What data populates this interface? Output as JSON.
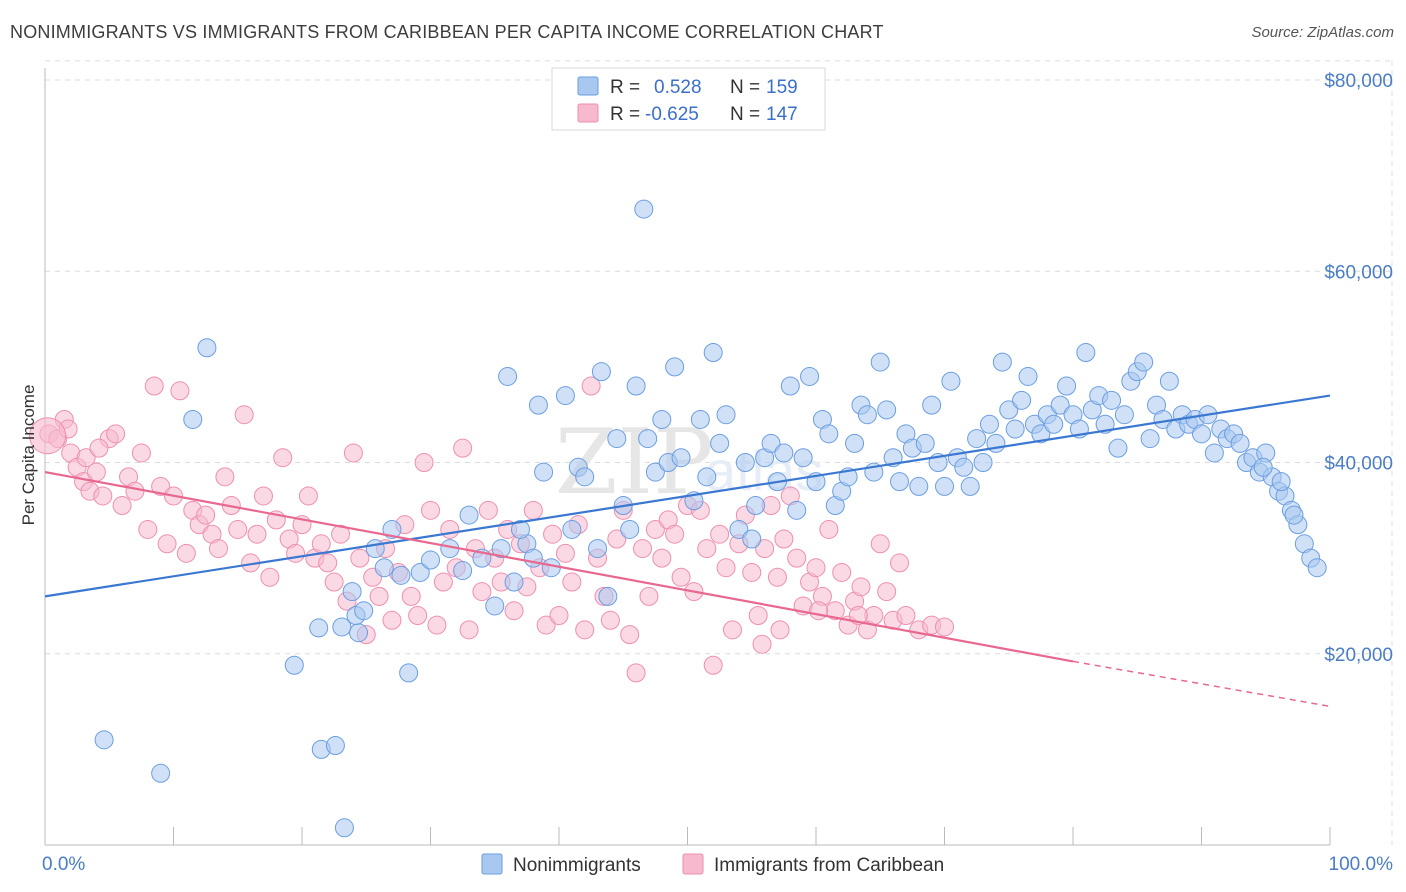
{
  "title": "NONIMMIGRANTS VS IMMIGRANTS FROM CARIBBEAN PER CAPITA INCOME CORRELATION CHART",
  "source": "Source: ZipAtlas.com",
  "watermark": {
    "zip": "ZIP",
    "atlas": "atlas"
  },
  "legend_top": {
    "r_label": "R =",
    "n_label": "N =",
    "rows": [
      {
        "r": "0.528",
        "n": "159",
        "color": "#a8c6f0",
        "stroke": "#6b9ee0"
      },
      {
        "r": "-0.625",
        "n": "147",
        "color": "#f7bcd0",
        "stroke": "#ee8fb0"
      }
    ]
  },
  "legend_bottom": [
    "Nonimmigrants",
    "Immigrants from Caribbean"
  ],
  "colors": {
    "blue": "#3b78d1",
    "pink": "#e8688f",
    "blue_fill": "#a9c8f0",
    "pink_fill": "#f6b9cd"
  },
  "chart_data": {
    "type": "scatter",
    "title": "NONIMMIGRANTS VS IMMIGRANTS FROM CARIBBEAN PER CAPITA INCOME CORRELATION CHART",
    "xlabel": "",
    "ylabel": "Per Capita Income",
    "xlim": [
      0,
      100
    ],
    "ylim": [
      0,
      82000
    ],
    "x_tick_labels": [
      "0.0%",
      "100.0%"
    ],
    "y_ticks": [
      20000,
      40000,
      60000,
      80000
    ],
    "y_tick_labels": [
      "$20,000",
      "$40,000",
      "$60,000",
      "$80,000"
    ],
    "grid": true,
    "series": [
      {
        "name": "Nonimmigrants",
        "trend": {
          "x0": 0,
          "y0": 26000,
          "x1": 100,
          "y1": 47000
        },
        "points": [
          [
            12.6,
            52000
          ],
          [
            11.5,
            44500
          ],
          [
            4.6,
            11000
          ],
          [
            9.0,
            7500
          ],
          [
            19.4,
            18800
          ],
          [
            21.3,
            22700
          ],
          [
            21.5,
            10000
          ],
          [
            22.6,
            10400
          ],
          [
            23.3,
            1800
          ],
          [
            23.1,
            22800
          ],
          [
            23.9,
            26500
          ],
          [
            24.4,
            22200
          ],
          [
            25.7,
            31000
          ],
          [
            26.4,
            29000
          ],
          [
            27.0,
            33000
          ],
          [
            27.7,
            28200
          ],
          [
            28.3,
            18000
          ],
          [
            24.2,
            24000
          ],
          [
            24.8,
            24500
          ],
          [
            29.2,
            28500
          ],
          [
            30.0,
            29800
          ],
          [
            31.5,
            31000
          ],
          [
            32.5,
            28700
          ],
          [
            33.0,
            34500
          ],
          [
            34.0,
            30000
          ],
          [
            35.0,
            25000
          ],
          [
            35.5,
            31000
          ],
          [
            36.0,
            49000
          ],
          [
            36.5,
            27500
          ],
          [
            37.5,
            31500
          ],
          [
            37.0,
            33000
          ],
          [
            38.0,
            30000
          ],
          [
            38.4,
            46000
          ],
          [
            38.8,
            39000
          ],
          [
            39.4,
            29000
          ],
          [
            40.5,
            47000
          ],
          [
            41.0,
            33000
          ],
          [
            41.5,
            39500
          ],
          [
            42.0,
            38500
          ],
          [
            43.0,
            31000
          ],
          [
            43.3,
            49500
          ],
          [
            43.8,
            26000
          ],
          [
            44.5,
            42500
          ],
          [
            45.0,
            35500
          ],
          [
            45.5,
            33000
          ],
          [
            46.0,
            48000
          ],
          [
            46.6,
            66500
          ],
          [
            46.9,
            42500
          ],
          [
            47.5,
            39000
          ],
          [
            48.0,
            44500
          ],
          [
            48.5,
            40000
          ],
          [
            49.0,
            50000
          ],
          [
            49.5,
            40500
          ],
          [
            50.5,
            36000
          ],
          [
            51.0,
            44500
          ],
          [
            51.5,
            38500
          ],
          [
            52.0,
            51500
          ],
          [
            52.5,
            42000
          ],
          [
            53.0,
            45000
          ],
          [
            54.0,
            33000
          ],
          [
            54.5,
            40000
          ],
          [
            55.0,
            32000
          ],
          [
            55.3,
            35500
          ],
          [
            56.0,
            40500
          ],
          [
            56.5,
            42000
          ],
          [
            57.0,
            38000
          ],
          [
            57.5,
            41000
          ],
          [
            58.0,
            48000
          ],
          [
            58.5,
            35000
          ],
          [
            59.0,
            40500
          ],
          [
            59.5,
            49000
          ],
          [
            60.0,
            38000
          ],
          [
            60.5,
            44500
          ],
          [
            61.0,
            43000
          ],
          [
            61.5,
            35500
          ],
          [
            62.0,
            37000
          ],
          [
            62.5,
            38500
          ],
          [
            63.0,
            42000
          ],
          [
            63.5,
            46000
          ],
          [
            64.0,
            45000
          ],
          [
            64.5,
            39000
          ],
          [
            65.0,
            50500
          ],
          [
            65.5,
            45500
          ],
          [
            66.0,
            40500
          ],
          [
            66.5,
            38000
          ],
          [
            67.0,
            43000
          ],
          [
            67.5,
            41500
          ],
          [
            68.0,
            37500
          ],
          [
            68.5,
            42000
          ],
          [
            69.0,
            46000
          ],
          [
            69.5,
            40000
          ],
          [
            70.0,
            37500
          ],
          [
            70.5,
            48500
          ],
          [
            71.0,
            40500
          ],
          [
            71.5,
            39500
          ],
          [
            72.0,
            37500
          ],
          [
            72.5,
            42500
          ],
          [
            73.0,
            40000
          ],
          [
            73.5,
            44000
          ],
          [
            74.0,
            42000
          ],
          [
            74.5,
            50500
          ],
          [
            75.0,
            45500
          ],
          [
            75.5,
            43500
          ],
          [
            76.0,
            46500
          ],
          [
            76.5,
            49000
          ],
          [
            77.0,
            44000
          ],
          [
            77.5,
            43000
          ],
          [
            78.0,
            45000
          ],
          [
            78.5,
            44000
          ],
          [
            79.0,
            46000
          ],
          [
            79.5,
            48000
          ],
          [
            80.0,
            45000
          ],
          [
            80.5,
            43500
          ],
          [
            81.0,
            51500
          ],
          [
            81.5,
            45500
          ],
          [
            82.0,
            47000
          ],
          [
            82.5,
            44000
          ],
          [
            83.0,
            46500
          ],
          [
            83.5,
            41500
          ],
          [
            84.0,
            45000
          ],
          [
            84.5,
            48500
          ],
          [
            85.0,
            49500
          ],
          [
            85.5,
            50500
          ],
          [
            86.0,
            42500
          ],
          [
            86.5,
            46000
          ],
          [
            87.0,
            44500
          ],
          [
            87.5,
            48500
          ],
          [
            88.0,
            43500
          ],
          [
            88.5,
            45000
          ],
          [
            89.0,
            44000
          ],
          [
            89.5,
            44500
          ],
          [
            90.0,
            43000
          ],
          [
            90.5,
            45000
          ],
          [
            91.0,
            41000
          ],
          [
            91.5,
            43500
          ],
          [
            92.0,
            42500
          ],
          [
            92.5,
            43000
          ],
          [
            93.0,
            42000
          ],
          [
            93.5,
            40000
          ],
          [
            94.0,
            40500
          ],
          [
            94.5,
            39000
          ],
          [
            95.0,
            41000
          ],
          [
            95.5,
            38500
          ],
          [
            96.0,
            37000
          ],
          [
            96.5,
            36500
          ],
          [
            97.0,
            35000
          ],
          [
            97.5,
            33500
          ],
          [
            98.0,
            31500
          ],
          [
            98.5,
            30000
          ],
          [
            99.0,
            29000
          ],
          [
            96.2,
            38000
          ],
          [
            94.8,
            39500
          ],
          [
            97.2,
            34500
          ]
        ]
      },
      {
        "name": "Immigrants from Caribbean",
        "trend": {
          "x0": 0,
          "y0": 39000,
          "x1": 80,
          "y1": 19200
        },
        "trend_dashed": {
          "x0": 80,
          "y0": 19200,
          "x1": 100,
          "y1": 14500
        },
        "points": [
          [
            0.3,
            43000
          ],
          [
            1.0,
            42500
          ],
          [
            1.5,
            44500
          ],
          [
            1.8,
            43500
          ],
          [
            2.0,
            41000
          ],
          [
            2.5,
            39500
          ],
          [
            3.0,
            38000
          ],
          [
            3.2,
            40500
          ],
          [
            3.5,
            37000
          ],
          [
            4.0,
            39000
          ],
          [
            4.5,
            36500
          ],
          [
            5.0,
            42500
          ],
          [
            5.5,
            43000
          ],
          [
            6.0,
            35500
          ],
          [
            6.5,
            38500
          ],
          [
            7.0,
            37000
          ],
          [
            7.5,
            41000
          ],
          [
            8.0,
            33000
          ],
          [
            8.5,
            48000
          ],
          [
            9.0,
            37500
          ],
          [
            9.5,
            31500
          ],
          [
            10.0,
            36500
          ],
          [
            10.5,
            47500
          ],
          [
            11.0,
            30500
          ],
          [
            11.5,
            35000
          ],
          [
            12.0,
            33500
          ],
          [
            12.5,
            34500
          ],
          [
            13.0,
            32500
          ],
          [
            13.5,
            31000
          ],
          [
            14.0,
            38500
          ],
          [
            14.5,
            35500
          ],
          [
            15.0,
            33000
          ],
          [
            15.5,
            45000
          ],
          [
            16.0,
            29500
          ],
          [
            16.5,
            32500
          ],
          [
            17.0,
            36500
          ],
          [
            17.5,
            28000
          ],
          [
            18.0,
            34000
          ],
          [
            18.5,
            40500
          ],
          [
            19.0,
            32000
          ],
          [
            19.5,
            30500
          ],
          [
            20.0,
            33500
          ],
          [
            20.5,
            36500
          ],
          [
            21.0,
            30000
          ],
          [
            21.5,
            31500
          ],
          [
            22.0,
            29500
          ],
          [
            22.5,
            27500
          ],
          [
            23.0,
            32500
          ],
          [
            23.5,
            25500
          ],
          [
            24.0,
            41000
          ],
          [
            24.5,
            30000
          ],
          [
            25.0,
            22000
          ],
          [
            25.5,
            28000
          ],
          [
            26.0,
            26000
          ],
          [
            26.5,
            31000
          ],
          [
            27.0,
            23500
          ],
          [
            27.5,
            28500
          ],
          [
            28.0,
            33500
          ],
          [
            28.5,
            26000
          ],
          [
            29.0,
            24000
          ],
          [
            29.5,
            40000
          ],
          [
            30.0,
            35000
          ],
          [
            30.5,
            23000
          ],
          [
            31.0,
            27500
          ],
          [
            31.5,
            33000
          ],
          [
            32.0,
            29000
          ],
          [
            32.5,
            41500
          ],
          [
            33.0,
            22500
          ],
          [
            33.5,
            31000
          ],
          [
            34.0,
            26500
          ],
          [
            34.5,
            35000
          ],
          [
            35.0,
            30000
          ],
          [
            35.5,
            27500
          ],
          [
            36.0,
            33000
          ],
          [
            36.5,
            24500
          ],
          [
            37.0,
            31500
          ],
          [
            37.5,
            27000
          ],
          [
            38.0,
            35000
          ],
          [
            38.5,
            29000
          ],
          [
            39.0,
            23000
          ],
          [
            39.5,
            32500
          ],
          [
            40.0,
            24000
          ],
          [
            40.5,
            30500
          ],
          [
            41.0,
            27500
          ],
          [
            41.5,
            33500
          ],
          [
            42.0,
            22500
          ],
          [
            42.5,
            48000
          ],
          [
            43.0,
            30000
          ],
          [
            43.5,
            26000
          ],
          [
            44.0,
            23500
          ],
          [
            44.5,
            32000
          ],
          [
            45.0,
            35000
          ],
          [
            45.5,
            22000
          ],
          [
            46.0,
            18000
          ],
          [
            46.5,
            31000
          ],
          [
            47.0,
            26000
          ],
          [
            47.5,
            33000
          ],
          [
            48.0,
            30000
          ],
          [
            48.5,
            34000
          ],
          [
            49.0,
            32500
          ],
          [
            49.5,
            28000
          ],
          [
            50.0,
            35500
          ],
          [
            50.5,
            26500
          ],
          [
            51.0,
            35000
          ],
          [
            51.5,
            31000
          ],
          [
            52.0,
            18800
          ],
          [
            52.5,
            32500
          ],
          [
            53.0,
            29000
          ],
          [
            53.5,
            22500
          ],
          [
            54.0,
            31500
          ],
          [
            54.5,
            34500
          ],
          [
            55.0,
            28500
          ],
          [
            55.5,
            24000
          ],
          [
            56.0,
            31000
          ],
          [
            56.5,
            35500
          ],
          [
            57.0,
            28000
          ],
          [
            57.5,
            32000
          ],
          [
            58.0,
            36500
          ],
          [
            58.5,
            30000
          ],
          [
            59.0,
            25000
          ],
          [
            59.5,
            27500
          ],
          [
            60.0,
            29000
          ],
          [
            60.5,
            26000
          ],
          [
            61.0,
            33000
          ],
          [
            61.5,
            24500
          ],
          [
            62.0,
            28500
          ],
          [
            62.5,
            23000
          ],
          [
            63.0,
            25500
          ],
          [
            63.5,
            27000
          ],
          [
            64.0,
            22500
          ],
          [
            64.5,
            24000
          ],
          [
            65.0,
            31500
          ],
          [
            65.5,
            26500
          ],
          [
            66.0,
            23500
          ],
          [
            66.5,
            29500
          ],
          [
            67.0,
            24000
          ],
          [
            68.0,
            22500
          ],
          [
            69.0,
            23000
          ],
          [
            70.0,
            22800
          ],
          [
            63.3,
            24000
          ],
          [
            60.2,
            24500
          ],
          [
            55.8,
            21000
          ],
          [
            57.2,
            22500
          ],
          [
            4.2,
            41500
          ]
        ]
      }
    ]
  }
}
